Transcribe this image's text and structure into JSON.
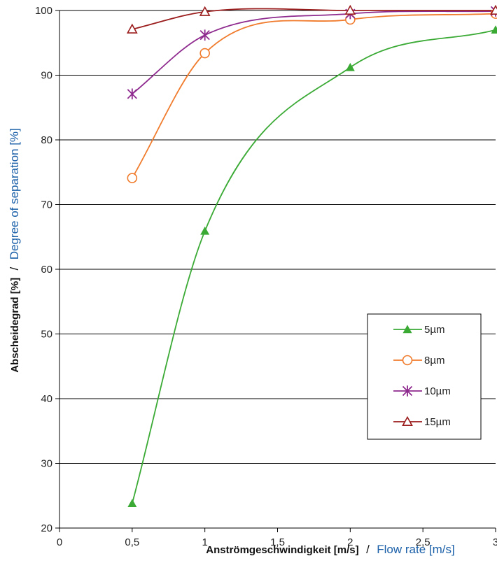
{
  "chart_data": {
    "type": "line",
    "xlabel": {
      "de": "Anströmgeschwindigkeit [m/s]",
      "sep": "/",
      "en": "Flow rate [m/s]"
    },
    "ylabel": {
      "de": "Abscheidegrad [%]",
      "sep": "/",
      "en": "Degree of separation [%]"
    },
    "xlim": [
      0,
      3
    ],
    "ylim": [
      20,
      100
    ],
    "x_ticks": [
      "0",
      "0,5",
      "1",
      "1,5",
      "2",
      "2,5",
      "3"
    ],
    "x_tick_values": [
      0,
      0.5,
      1,
      1.5,
      2,
      2.5,
      3
    ],
    "y_ticks": [
      "20",
      "30",
      "40",
      "50",
      "60",
      "70",
      "80",
      "90",
      "100"
    ],
    "y_tick_values": [
      20,
      30,
      40,
      50,
      60,
      70,
      80,
      90,
      100
    ],
    "grid": "horizontal",
    "legend_position": "lower-right",
    "series": [
      {
        "name": "5µm",
        "color": "#3aaa35",
        "marker": "filled-triangle",
        "x": [
          0.5,
          1,
          2,
          3
        ],
        "y": [
          23.8,
          65.9,
          91.2,
          97.0
        ]
      },
      {
        "name": "8µm",
        "color": "#f07b2c",
        "marker": "open-circle",
        "x": [
          0.5,
          1,
          2,
          3
        ],
        "y": [
          74.1,
          93.4,
          98.6,
          99.5
        ]
      },
      {
        "name": "10µm",
        "color": "#8e2a8e",
        "marker": "star",
        "x": [
          0.5,
          1,
          2,
          3
        ],
        "y": [
          87.1,
          96.2,
          99.5,
          99.9
        ]
      },
      {
        "name": "15µm",
        "color": "#9b1c1c",
        "marker": "open-triangle",
        "x": [
          0.5,
          1,
          2,
          3
        ],
        "y": [
          97.1,
          99.8,
          100.0,
          100.0
        ]
      }
    ]
  }
}
